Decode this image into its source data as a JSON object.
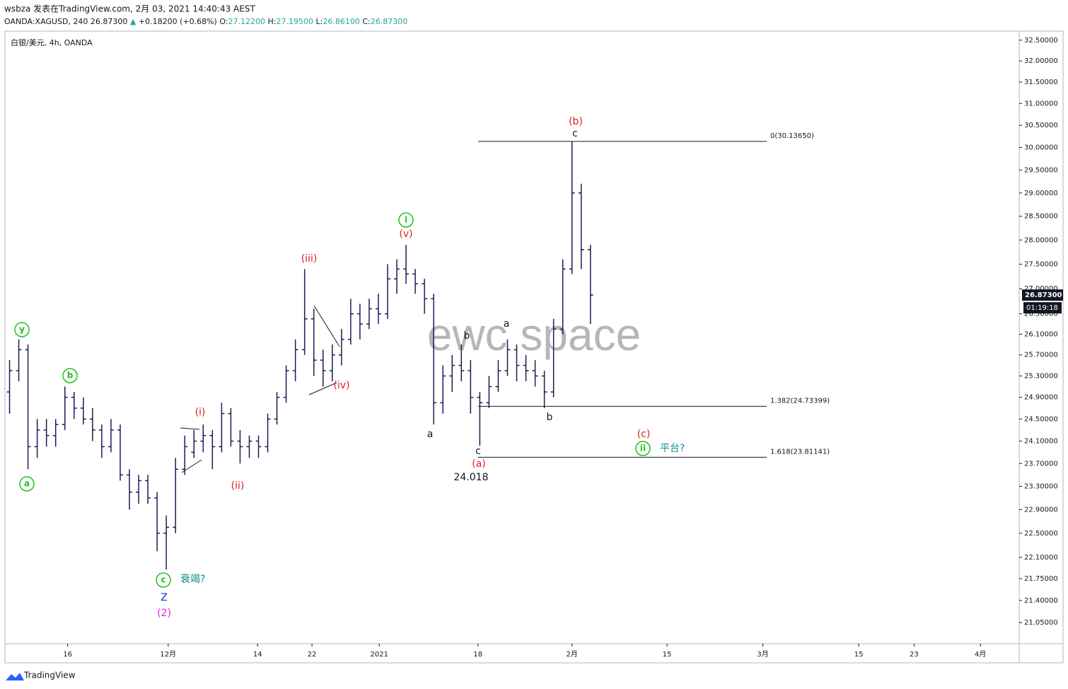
{
  "header": {
    "author_line": "wsbza 发表在TradingView.com, 2月 03, 2021 14:40:43 AEST",
    "symbol_line": "OANDA:XAGUSD, 240 26.87300",
    "arrow": "▲",
    "change": "+0.18200 (+0.68%)",
    "o_label": "O:",
    "o_value": "27.12200",
    "h_label": "H:",
    "h_value": "27.19500",
    "l_label": "L:",
    "l_value": "26.86100",
    "c_label": "C:",
    "c_value": "26.87300"
  },
  "footer": {
    "brand": "TradingView"
  },
  "chart_data": {
    "type": "ohlc",
    "title": "白银/美元, 4h, OANDA",
    "watermark": "ewc space",
    "color": "#1c1c54",
    "log_scale": true,
    "xlim": [
      -0.5,
      109.5
    ],
    "ylim": [
      20.72,
      32.72
    ],
    "xticks": [
      {
        "value": 6.3,
        "label": "16"
      },
      {
        "value": 17.2,
        "label": "12月"
      },
      {
        "value": 26.9,
        "label": "14"
      },
      {
        "value": 32.8,
        "label": "22"
      },
      {
        "value": 40.1,
        "label": "2021"
      },
      {
        "value": 50.8,
        "label": "18"
      },
      {
        "value": 61.0,
        "label": "2月"
      },
      {
        "value": 71.3,
        "label": "15"
      },
      {
        "value": 81.7,
        "label": "3月"
      },
      {
        "value": 92.1,
        "label": "15"
      },
      {
        "value": 98.1,
        "label": "23"
      },
      {
        "value": 105.3,
        "label": "4月"
      }
    ],
    "yticks": [
      {
        "value": 32.5,
        "label": "32.50000"
      },
      {
        "value": 32.0,
        "label": "32.00000"
      },
      {
        "value": 31.5,
        "label": "31.50000"
      },
      {
        "value": 31.0,
        "label": "31.00000"
      },
      {
        "value": 30.5,
        "label": "30.50000"
      },
      {
        "value": 30.0,
        "label": "30.00000"
      },
      {
        "value": 29.5,
        "label": "29.50000"
      },
      {
        "value": 29.0,
        "label": "29.00000"
      },
      {
        "value": 28.5,
        "label": "28.50000"
      },
      {
        "value": 28.0,
        "label": "28.00000"
      },
      {
        "value": 27.5,
        "label": "27.50000"
      },
      {
        "value": 27.0,
        "label": "27.00000"
      },
      {
        "value": 26.5,
        "label": "26.50000"
      },
      {
        "value": 26.1,
        "label": "26.10000"
      },
      {
        "value": 25.7,
        "label": "25.70000"
      },
      {
        "value": 25.3,
        "label": "25.30000"
      },
      {
        "value": 24.9,
        "label": "24.90000"
      },
      {
        "value": 24.5,
        "label": "24.50000"
      },
      {
        "value": 24.1,
        "label": "24.10000"
      },
      {
        "value": 23.7,
        "label": "23.70000"
      },
      {
        "value": 23.3,
        "label": "23.30000"
      },
      {
        "value": 22.9,
        "label": "22.90000"
      },
      {
        "value": 22.5,
        "label": "22.50000"
      },
      {
        "value": 22.1,
        "label": "22.10000"
      },
      {
        "value": 21.75,
        "label": "21.75000"
      },
      {
        "value": 21.4,
        "label": "21.40000"
      },
      {
        "value": 21.05,
        "label": "21.05000"
      }
    ],
    "x": [
      0,
      1,
      2,
      3,
      4,
      5,
      6,
      7,
      8,
      9,
      10,
      11,
      12,
      13,
      14,
      15,
      16,
      17,
      18,
      19,
      20,
      21,
      22,
      23,
      24,
      25,
      26,
      27,
      28,
      29,
      30,
      31,
      32,
      33,
      34,
      35,
      36,
      37,
      38,
      39,
      40,
      41,
      42,
      43,
      44,
      45,
      46,
      47,
      48,
      49,
      50,
      51,
      52,
      53,
      54,
      55,
      56,
      57,
      58,
      59,
      60,
      61,
      62,
      63
    ],
    "open": [
      25.0,
      25.4,
      25.8,
      24.0,
      24.3,
      24.2,
      24.4,
      24.9,
      24.7,
      24.5,
      24.3,
      24.0,
      24.3,
      23.5,
      23.2,
      23.4,
      23.1,
      22.5,
      22.6,
      23.6,
      23.9,
      24.1,
      24.2,
      24.0,
      24.6,
      24.1,
      24.0,
      24.1,
      24.0,
      24.5,
      24.9,
      25.4,
      25.8,
      26.4,
      25.6,
      25.4,
      25.7,
      26.0,
      26.5,
      26.3,
      26.6,
      26.5,
      27.2,
      27.4,
      27.3,
      27.1,
      26.8,
      24.8,
      25.3,
      25.5,
      25.4,
      24.9,
      24.8,
      25.1,
      25.4,
      25.8,
      25.5,
      25.4,
      25.3,
      25.0,
      26.2,
      27.4,
      29.0,
      27.8
    ],
    "high": [
      25.6,
      26.0,
      25.9,
      24.5,
      24.5,
      24.5,
      25.1,
      25.0,
      24.9,
      24.7,
      24.4,
      24.5,
      24.4,
      23.6,
      23.5,
      23.5,
      23.2,
      22.8,
      23.8,
      24.2,
      24.3,
      24.4,
      24.3,
      24.8,
      24.7,
      24.3,
      24.2,
      24.2,
      24.6,
      25.0,
      25.5,
      26.0,
      27.4,
      26.6,
      25.8,
      25.9,
      26.2,
      26.8,
      26.7,
      26.8,
      26.9,
      27.5,
      27.6,
      27.9,
      27.4,
      27.2,
      26.9,
      25.5,
      25.7,
      25.9,
      25.6,
      25.0,
      25.3,
      25.6,
      26.0,
      25.9,
      25.7,
      25.6,
      25.4,
      26.4,
      27.6,
      30.1365,
      29.2,
      27.9
    ],
    "low": [
      24.6,
      25.2,
      23.6,
      23.8,
      24.0,
      24.0,
      24.3,
      24.5,
      24.4,
      24.1,
      23.8,
      23.9,
      23.4,
      22.9,
      23.0,
      23.0,
      22.2,
      21.9,
      22.5,
      23.5,
      23.8,
      23.9,
      23.6,
      23.9,
      24.0,
      23.7,
      23.8,
      23.8,
      23.9,
      24.4,
      24.8,
      25.2,
      25.7,
      25.3,
      25.1,
      25.2,
      25.5,
      25.9,
      26.0,
      26.2,
      26.3,
      26.4,
      26.9,
      27.1,
      26.9,
      26.5,
      24.4,
      24.6,
      25.0,
      25.2,
      24.6,
      24.018,
      24.7,
      25.0,
      25.3,
      25.2,
      25.2,
      25.1,
      24.7,
      24.9,
      26.1,
      27.3,
      27.4,
      26.3
    ],
    "close": [
      25.4,
      25.8,
      24.0,
      24.3,
      24.2,
      24.4,
      24.9,
      24.7,
      24.5,
      24.3,
      24.0,
      24.3,
      23.5,
      23.2,
      23.4,
      23.1,
      22.5,
      22.6,
      23.6,
      24.0,
      24.1,
      24.2,
      24.0,
      24.6,
      24.1,
      24.0,
      24.1,
      24.0,
      24.5,
      24.9,
      25.4,
      25.8,
      26.4,
      25.6,
      25.4,
      25.7,
      26.0,
      26.5,
      26.3,
      26.6,
      26.5,
      27.2,
      27.4,
      27.3,
      27.1,
      26.8,
      24.8,
      25.3,
      25.5,
      25.4,
      24.9,
      24.8,
      25.1,
      25.4,
      25.8,
      25.5,
      25.4,
      25.3,
      25.0,
      26.2,
      27.4,
      29.0,
      27.8,
      26.873
    ],
    "last_price": {
      "value": 26.873,
      "label": "26.87300"
    },
    "countdown": "01:19:18",
    "fib_levels": [
      {
        "value": 30.1365,
        "label": "0(30.13650)"
      },
      {
        "value": 24.73399,
        "label": "1.382(24.73399)"
      },
      {
        "value": 23.81141,
        "label": "1.618(23.81141)"
      }
    ],
    "annotations": [
      {
        "text": "y",
        "color": "#22c022",
        "circled": true
      },
      {
        "text": "b",
        "color": "#22c022",
        "circled": true
      },
      {
        "text": "a",
        "color": "#22c022",
        "circled": true
      },
      {
        "text": "c",
        "color": "#22c022",
        "circled": true
      },
      {
        "text": "衰竭?",
        "color": "#138c8c"
      },
      {
        "text": "Z",
        "color": "#1a2ee0"
      },
      {
        "text": "(2)",
        "color": "#e020e0"
      },
      {
        "text": "(i)",
        "color": "#e02020"
      },
      {
        "text": "(ii)",
        "color": "#e02020"
      },
      {
        "text": "(iii)",
        "color": "#e02020"
      },
      {
        "text": "(iv)",
        "color": "#e02020"
      },
      {
        "text": "(v)",
        "color": "#e02020"
      },
      {
        "text": "i",
        "color": "#22c022",
        "circled": true
      },
      {
        "text": "a",
        "color": "#131722"
      },
      {
        "text": "b",
        "color": "#131722"
      },
      {
        "text": "c",
        "color": "#131722"
      },
      {
        "text": "(a)",
        "color": "#e02020"
      },
      {
        "text": "24.018",
        "color": "#131722"
      },
      {
        "text": "a",
        "color": "#131722"
      },
      {
        "text": "b",
        "color": "#131722"
      },
      {
        "text": "c",
        "color": "#131722"
      },
      {
        "text": "(b)",
        "color": "#e02020"
      },
      {
        "text": "(c)",
        "color": "#e02020"
      },
      {
        "text": "ii",
        "color": "#22c022",
        "circled": true
      },
      {
        "text": "平台?",
        "color": "#138c8c"
      }
    ]
  }
}
